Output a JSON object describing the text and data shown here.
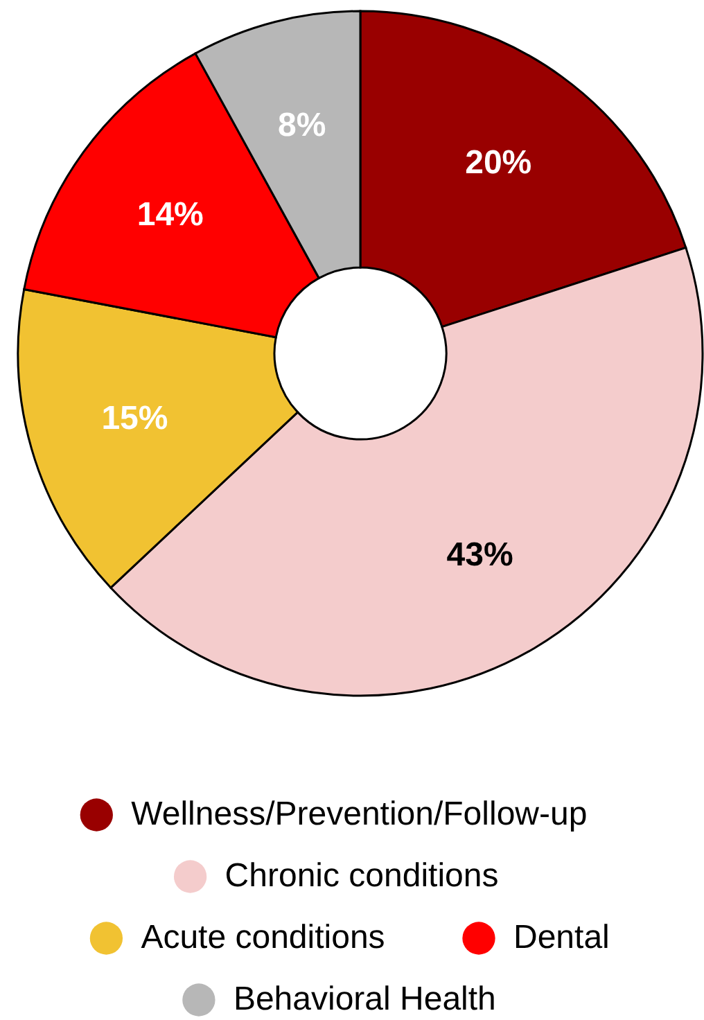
{
  "chart_data": {
    "type": "donut",
    "categories": [
      "Wellness/Prevention/Follow-up",
      "Chronic conditions",
      "Acute conditions",
      "Dental",
      "Behavioral Health"
    ],
    "values": [
      20,
      43,
      15,
      14,
      8
    ],
    "colors": [
      "#990000",
      "#f4cccc",
      "#f1c232",
      "#ff0000",
      "#b7b7b7"
    ],
    "value_labels": [
      "20%",
      "43%",
      "15%",
      "14%",
      "8%"
    ],
    "legend": "bottom"
  }
}
